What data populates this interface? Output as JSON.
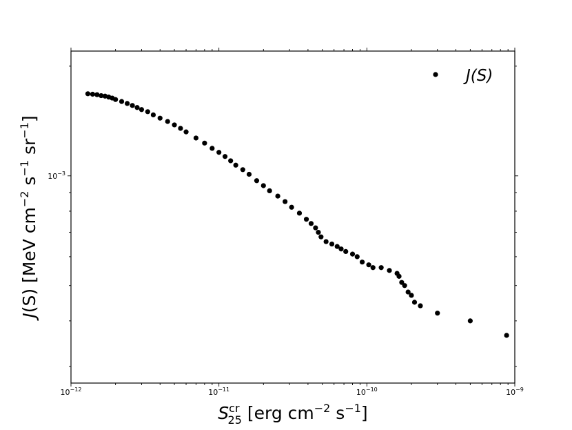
{
  "chart_data": {
    "type": "scatter",
    "xscale": "log",
    "yscale": "log",
    "xlim": [
      1e-12,
      1e-09
    ],
    "ylim": [
      0.00027,
      0.0022
    ],
    "xticks": [
      {
        "value": 1e-12,
        "mantissa": "10",
        "exp": "−12"
      },
      {
        "value": 1e-11,
        "mantissa": "10",
        "exp": "−11"
      },
      {
        "value": 1e-10,
        "mantissa": "10",
        "exp": "−10"
      },
      {
        "value": 1e-09,
        "mantissa": "10",
        "exp": "−9"
      }
    ],
    "yticks": [
      {
        "value": 0.001,
        "mantissa": "10",
        "exp": "−3"
      }
    ],
    "xlabel": {
      "sym": "S",
      "sup": "cr",
      "sub": "25",
      "rest": " [erg cm",
      "exp1": "−2",
      "mid": " s",
      "exp2": "−1",
      "end": "]"
    },
    "ylabel": {
      "func": "J",
      "arg": "(S)",
      "unit": " [MeV cm",
      "exp1": "−2",
      "mid1": " s",
      "exp2": "−1",
      "mid2": " sr",
      "exp3": "−1",
      "end": "]"
    },
    "legend": {
      "position": "top-right",
      "func": "J",
      "arg": "(S)"
    },
    "grid": false,
    "marker_color": "#000000",
    "series": [
      {
        "name": "J(S)",
        "points": [
          [
            1.3e-12,
            0.00168
          ],
          [
            1.4e-12,
            0.001675
          ],
          [
            1.5e-12,
            0.00167
          ],
          [
            1.6e-12,
            0.00166
          ],
          [
            1.7e-12,
            0.001655
          ],
          [
            1.8e-12,
            0.001645
          ],
          [
            1.9e-12,
            0.001635
          ],
          [
            2e-12,
            0.00162
          ],
          [
            2.2e-12,
            0.0016
          ],
          [
            2.4e-12,
            0.00158
          ],
          [
            2.6e-12,
            0.00156
          ],
          [
            2.8e-12,
            0.00154
          ],
          [
            3e-12,
            0.00152
          ],
          [
            3.3e-12,
            0.0015
          ],
          [
            3.6e-12,
            0.00147
          ],
          [
            4e-12,
            0.00144
          ],
          [
            4.5e-12,
            0.00141
          ],
          [
            5e-12,
            0.00138
          ],
          [
            5.5e-12,
            0.00135
          ],
          [
            6e-12,
            0.00132
          ],
          [
            7e-12,
            0.00127
          ],
          [
            8e-12,
            0.00123
          ],
          [
            9e-12,
            0.00119
          ],
          [
            1e-11,
            0.00116
          ],
          [
            1.1e-11,
            0.00113
          ],
          [
            1.2e-11,
            0.0011
          ],
          [
            1.3e-11,
            0.00107
          ],
          [
            1.45e-11,
            0.00104
          ],
          [
            1.6e-11,
            0.00101
          ],
          [
            1.8e-11,
            0.00097
          ],
          [
            2e-11,
            0.00094
          ],
          [
            2.2e-11,
            0.00091
          ],
          [
            2.5e-11,
            0.00088
          ],
          [
            2.8e-11,
            0.00085
          ],
          [
            3.1e-11,
            0.00082
          ],
          [
            3.5e-11,
            0.00079
          ],
          [
            3.9e-11,
            0.00076
          ],
          [
            4.2e-11,
            0.00074
          ],
          [
            4.5e-11,
            0.00072
          ],
          [
            4.7e-11,
            0.0007
          ],
          [
            4.9e-11,
            0.00068
          ],
          [
            5.3e-11,
            0.00066
          ],
          [
            5.8e-11,
            0.00065
          ],
          [
            6.3e-11,
            0.00064
          ],
          [
            6.7e-11,
            0.00063
          ],
          [
            7.2e-11,
            0.00062
          ],
          [
            8e-11,
            0.00061
          ],
          [
            8.6e-11,
            0.0006
          ],
          [
            9.3e-11,
            0.00058
          ],
          [
            1.03e-10,
            0.00057
          ],
          [
            1.1e-10,
            0.00056
          ],
          [
            1.25e-10,
            0.00056
          ],
          [
            1.42e-10,
            0.00055
          ],
          [
            1.6e-10,
            0.00054
          ],
          [
            1.65e-10,
            0.00053
          ],
          [
            1.72e-10,
            0.00051
          ],
          [
            1.8e-10,
            0.0005
          ],
          [
            1.9e-10,
            0.00048
          ],
          [
            2e-10,
            0.00047
          ],
          [
            2.1e-10,
            0.00045
          ],
          [
            2.3e-10,
            0.00044
          ],
          [
            3e-10,
            0.00042
          ],
          [
            5e-10,
            0.0004
          ],
          [
            8.8e-10,
            0.000365
          ]
        ]
      }
    ]
  }
}
